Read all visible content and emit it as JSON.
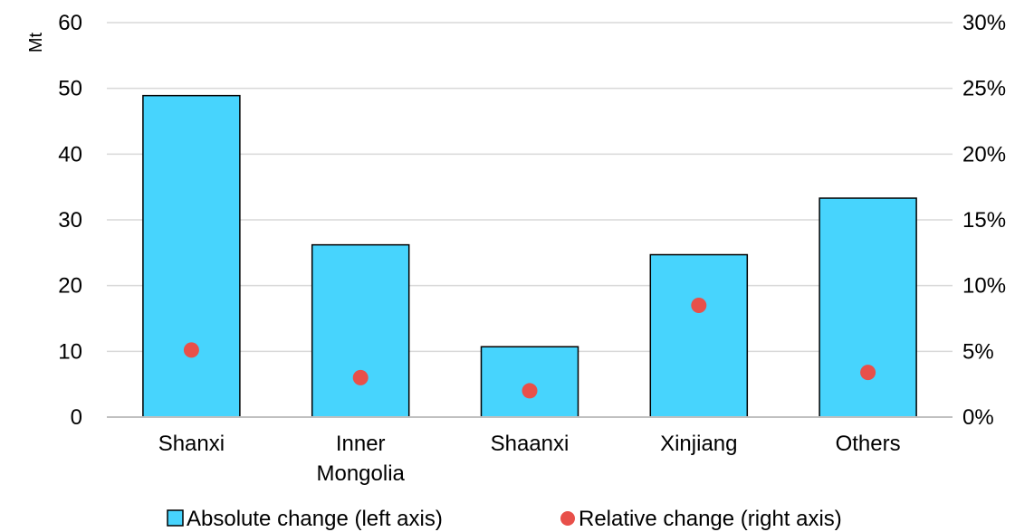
{
  "chart_data": {
    "type": "bar",
    "categories": [
      "Shanxi",
      "Inner Mongolia",
      "Shaanxi",
      "Xinjiang",
      "Others"
    ],
    "category_lines": [
      [
        "Shanxi"
      ],
      [
        "Inner",
        "Mongolia"
      ],
      [
        "Shaanxi"
      ],
      [
        "Xinjiang"
      ],
      [
        "Others"
      ]
    ],
    "series": [
      {
        "name": "Absolute change (left axis)",
        "axis": "left",
        "kind": "bar",
        "color": "#47d4fd",
        "values": [
          48.9,
          26.2,
          10.7,
          24.7,
          33.3
        ]
      },
      {
        "name": "Relative change (right axis)",
        "axis": "right",
        "kind": "scatter",
        "color": "#e8504a",
        "values": [
          5.1,
          3.0,
          2.0,
          8.5,
          3.4
        ]
      }
    ],
    "title": "",
    "xlabel": "",
    "ylabel": "Mt",
    "ylim": [
      0,
      60
    ],
    "y_ticks": [
      "0",
      "10",
      "20",
      "30",
      "40",
      "50",
      "60"
    ],
    "y2lim": [
      0,
      30
    ],
    "y2_ticks": [
      "0%",
      "5%",
      "10%",
      "15%",
      "20%",
      "25%",
      "30%"
    ],
    "grid": true,
    "legend_position": "bottom"
  }
}
